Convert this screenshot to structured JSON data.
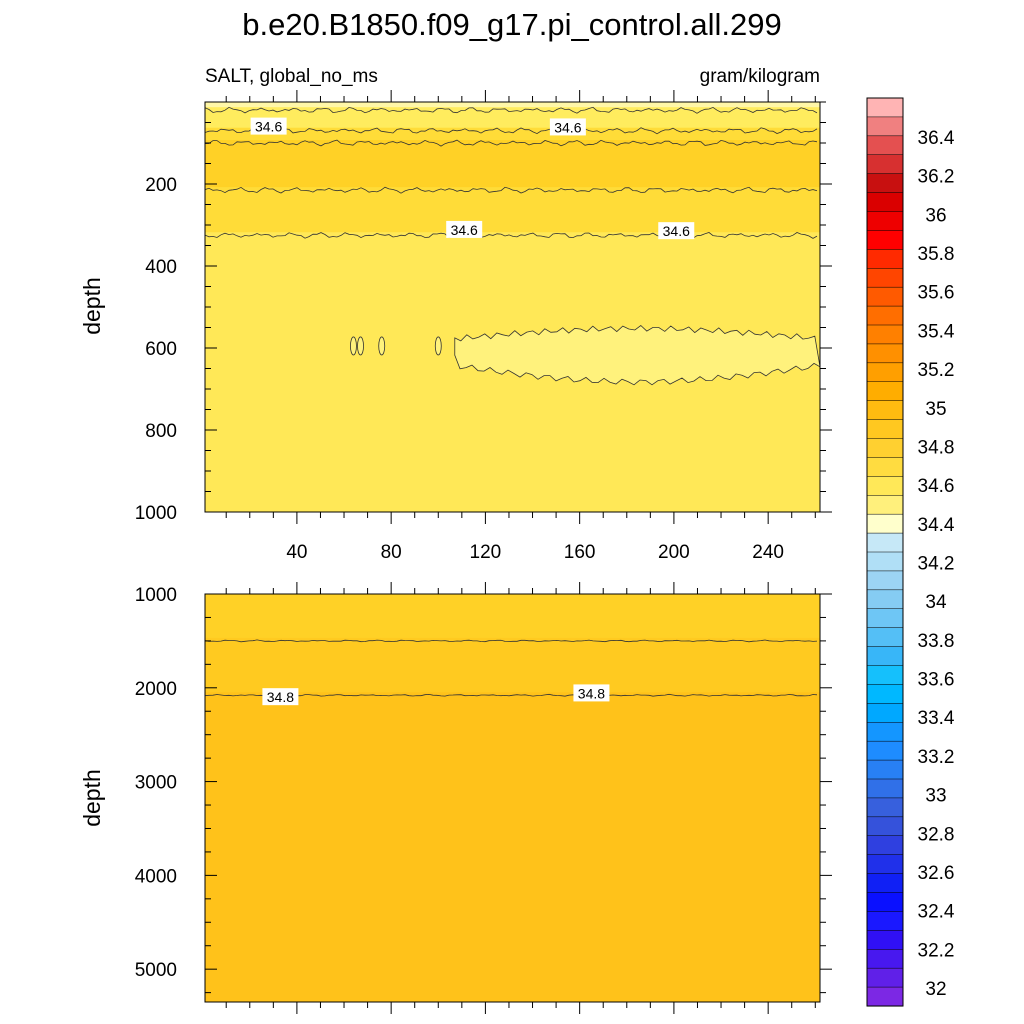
{
  "chart_data": {
    "type": "contour",
    "title": "b.e20.B1850.f09_g17.pi_control.all.299",
    "left_subtitle": "SALT, global_no_ms",
    "right_subtitle": "gram/kilogram",
    "ylabel": "depth",
    "x_axis": {
      "range": [
        1,
        262
      ],
      "ticks": [
        40,
        80,
        120,
        160,
        200,
        240
      ]
    },
    "panels": [
      {
        "name": "upper",
        "ylim": [
          1000,
          0
        ],
        "yticks": [
          200,
          400,
          600,
          800,
          1000
        ],
        "contour_labels": [
          {
            "x": 28,
            "depth": 60,
            "text": "34.6"
          },
          {
            "x": 155,
            "depth": 62,
            "text": "34.6"
          },
          {
            "x": 111,
            "depth": 312,
            "text": "34.6"
          },
          {
            "x": 201,
            "depth": 315,
            "text": "34.6"
          }
        ],
        "bands": [
          {
            "top": 0,
            "bottom": 20,
            "color": "#fff7a8"
          },
          {
            "top": 20,
            "bottom": 70,
            "color": "#ffec5e"
          },
          {
            "top": 70,
            "bottom": 100,
            "color": "#ffdc38"
          },
          {
            "top": 100,
            "bottom": 215,
            "color": "#ffd126"
          },
          {
            "top": 215,
            "bottom": 325,
            "color": "#ffdc38"
          },
          {
            "top": 325,
            "bottom": 1000,
            "color": "#ffe857"
          }
        ],
        "fresh_pocket": {
          "x_from": 107,
          "x_to": 262,
          "depth_from": 545,
          "depth_to": 690,
          "color": "#fff27c"
        }
      },
      {
        "name": "lower",
        "ylim": [
          5350,
          1000
        ],
        "yticks": [
          1000,
          2000,
          3000,
          4000,
          5000
        ],
        "contour_labels": [
          {
            "x": 33,
            "depth": 2100,
            "text": "34.8"
          },
          {
            "x": 165,
            "depth": 2060,
            "text": "34.8"
          }
        ],
        "bands": [
          {
            "top": 1000,
            "bottom": 1500,
            "color": "#ffd126"
          },
          {
            "top": 1500,
            "bottom": 2080,
            "color": "#ffca20"
          },
          {
            "top": 2080,
            "bottom": 5350,
            "color": "#ffc21a"
          }
        ]
      }
    ],
    "colorbar": {
      "labels": [
        "36.4",
        "36.2",
        "36",
        "35.8",
        "35.6",
        "35.4",
        "35.2",
        "35",
        "34.8",
        "34.6",
        "34.4",
        "34.2",
        "34",
        "33.8",
        "33.6",
        "33.4",
        "33.2",
        "33",
        "32.8",
        "32.6",
        "32.4",
        "32.2",
        "32"
      ],
      "colors": [
        "#ffb4b4",
        "#f08080",
        "#e45050",
        "#d73030",
        "#c81010",
        "#da0000",
        "#ee0000",
        "#ff0000",
        "#ff2a00",
        "#ff4500",
        "#ff5a00",
        "#ff6e00",
        "#ff8000",
        "#ff9000",
        "#ff9f00",
        "#ffad00",
        "#ffbb10",
        "#ffc820",
        "#ffd030",
        "#ffdc40",
        "#ffe858",
        "#fff07c",
        "#ffffcc",
        "#c6e8f7",
        "#b0dff6",
        "#9cd4f4",
        "#85ccf3",
        "#6ec6f5",
        "#54bff6",
        "#38b6f8",
        "#15c0fc",
        "#00b8ff",
        "#00a8ff",
        "#1496ff",
        "#1e8cff",
        "#2880f4",
        "#3070e8",
        "#3760dd",
        "#3552db",
        "#2f40e0",
        "#2030ea",
        "#1020f5",
        "#0a10ff",
        "#1a18ff",
        "#3010f5",
        "#4818ef",
        "#6020e8",
        "#7c28e4"
      ]
    }
  }
}
